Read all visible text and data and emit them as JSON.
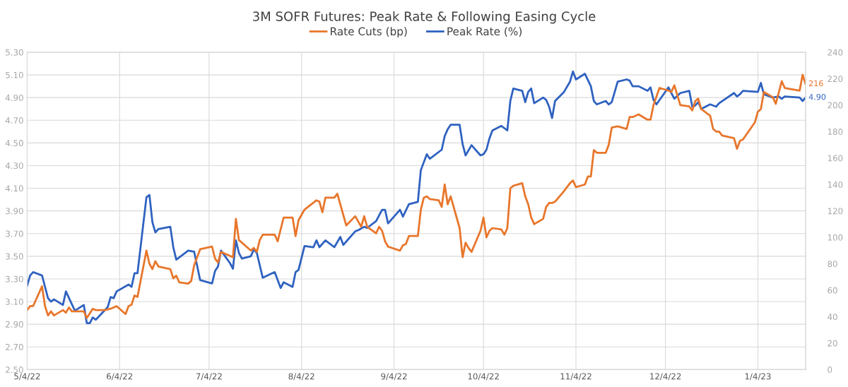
{
  "chart_data": {
    "type": "line",
    "title": "3M SOFR Futures: Peak Rate & Following Easing Cycle",
    "legend": "top",
    "grid": true,
    "line_style": "solid",
    "marker": "none",
    "xlim": [
      "2022-05-04",
      "2023-01-20"
    ],
    "xticks": [
      {
        "value": "2022-05-04",
        "label": "5/4/22"
      },
      {
        "value": "2022-06-04",
        "label": "6/4/22"
      },
      {
        "value": "2022-07-04",
        "label": "7/4/22"
      },
      {
        "value": "2022-08-04",
        "label": "8/4/22"
      },
      {
        "value": "2022-09-04",
        "label": "9/4/22"
      },
      {
        "value": "2022-10-04",
        "label": "10/4/22"
      },
      {
        "value": "2022-11-04",
        "label": "11/4/22"
      },
      {
        "value": "2022-12-04",
        "label": "12/4/22"
      },
      {
        "value": "2023-01-04",
        "label": "1/4/23"
      }
    ],
    "ylim": [
      2.5,
      5.3
    ],
    "yticks": [
      {
        "value": 2.5,
        "label": "2.50"
      },
      {
        "value": 2.7,
        "label": "2.70"
      },
      {
        "value": 2.9,
        "label": "2.90"
      },
      {
        "value": 3.1,
        "label": "3.10"
      },
      {
        "value": 3.3,
        "label": "3.30"
      },
      {
        "value": 3.5,
        "label": "3.50"
      },
      {
        "value": 3.7,
        "label": "3.70"
      },
      {
        "value": 3.9,
        "label": "3.90"
      },
      {
        "value": 4.1,
        "label": "4.10"
      },
      {
        "value": 4.3,
        "label": "4.30"
      },
      {
        "value": 4.5,
        "label": "4.50"
      },
      {
        "value": 4.7,
        "label": "4.70"
      },
      {
        "value": 4.9,
        "label": "4.90"
      },
      {
        "value": 5.1,
        "label": "5.10"
      },
      {
        "value": 5.3,
        "label": "5.30"
      }
    ],
    "y2lim": [
      0,
      240
    ],
    "y2ticks": [
      0,
      20,
      40,
      60,
      80,
      100,
      120,
      140,
      160,
      180,
      200,
      220,
      240
    ],
    "series": [
      {
        "name": "Rate Cuts (bp)",
        "color": "#e8762b",
        "axis": "y2",
        "x": [
          "2022-05-04",
          "2022-05-05",
          "2022-05-06",
          "2022-05-09",
          "2022-05-10",
          "2022-05-11",
          "2022-05-12",
          "2022-05-13",
          "2022-05-16",
          "2022-05-17",
          "2022-05-18",
          "2022-05-19",
          "2022-05-23",
          "2022-05-24",
          "2022-05-26",
          "2022-05-27",
          "2022-05-30",
          "2022-06-01",
          "2022-06-03",
          "2022-06-06",
          "2022-06-07",
          "2022-06-08",
          "2022-06-09",
          "2022-06-10",
          "2022-06-13",
          "2022-06-14",
          "2022-06-15",
          "2022-06-16",
          "2022-06-17",
          "2022-06-21",
          "2022-06-22",
          "2022-06-23",
          "2022-06-24",
          "2022-06-27",
          "2022-06-28",
          "2022-06-29",
          "2022-07-01",
          "2022-07-05",
          "2022-07-06",
          "2022-07-07",
          "2022-07-08",
          "2022-07-12",
          "2022-07-13",
          "2022-07-14",
          "2022-07-18",
          "2022-07-19",
          "2022-07-20",
          "2022-07-21",
          "2022-07-22",
          "2022-07-26",
          "2022-07-27",
          "2022-07-29",
          "2022-08-01",
          "2022-08-02",
          "2022-08-03",
          "2022-08-05",
          "2022-08-09",
          "2022-08-10",
          "2022-08-11",
          "2022-08-12",
          "2022-08-15",
          "2022-08-16",
          "2022-08-19",
          "2022-08-22",
          "2022-08-24",
          "2022-08-25",
          "2022-08-26",
          "2022-08-29",
          "2022-08-30",
          "2022-08-31",
          "2022-09-01",
          "2022-09-02",
          "2022-09-06",
          "2022-09-07",
          "2022-09-08",
          "2022-09-09",
          "2022-09-12",
          "2022-09-13",
          "2022-09-14",
          "2022-09-15",
          "2022-09-16",
          "2022-09-19",
          "2022-09-20",
          "2022-09-21",
          "2022-09-22",
          "2022-09-23",
          "2022-09-26",
          "2022-09-27",
          "2022-09-28",
          "2022-09-29",
          "2022-09-30",
          "2022-10-03",
          "2022-10-04",
          "2022-10-05",
          "2022-10-06",
          "2022-10-07",
          "2022-10-10",
          "2022-10-11",
          "2022-10-12",
          "2022-10-13",
          "2022-10-14",
          "2022-10-17",
          "2022-10-18",
          "2022-10-19",
          "2022-10-20",
          "2022-10-21",
          "2022-10-24",
          "2022-10-25",
          "2022-10-26",
          "2022-10-27",
          "2022-10-28",
          "2022-10-31",
          "2022-11-02",
          "2022-11-03",
          "2022-11-04",
          "2022-11-07",
          "2022-11-08",
          "2022-11-09",
          "2022-11-10",
          "2022-11-11",
          "2022-11-14",
          "2022-11-15",
          "2022-11-16",
          "2022-11-18",
          "2022-11-21",
          "2022-11-22",
          "2022-11-23",
          "2022-11-25",
          "2022-11-28",
          "2022-11-29",
          "2022-11-30",
          "2022-12-02",
          "2022-12-05",
          "2022-12-06",
          "2022-12-07",
          "2022-12-09",
          "2022-12-12",
          "2022-12-13",
          "2022-12-14",
          "2022-12-15",
          "2022-12-16",
          "2022-12-19",
          "2022-12-20",
          "2022-12-21",
          "2022-12-22",
          "2022-12-23",
          "2022-12-27",
          "2022-12-28",
          "2022-12-29",
          "2022-12-30",
          "2023-01-03",
          "2023-01-04",
          "2023-01-05",
          "2023-01-06",
          "2023-01-09",
          "2023-01-10",
          "2023-01-12",
          "2023-01-13",
          "2023-01-18",
          "2023-01-19",
          "2023-01-20"
        ],
        "values": [
          45,
          48,
          48,
          63,
          48,
          41,
          44,
          41,
          45,
          43,
          47,
          44,
          44,
          39,
          46,
          45,
          45,
          46,
          48,
          42,
          48,
          49,
          56,
          55,
          90,
          80,
          76,
          82,
          78,
          76,
          69,
          71,
          66,
          65,
          67,
          79,
          91,
          93,
          84,
          81,
          89,
          85,
          114,
          98,
          90,
          92,
          89,
          98,
          102,
          102,
          97,
          115,
          115,
          101,
          113,
          121,
          128,
          127,
          119,
          130,
          130,
          133,
          109,
          116,
          108,
          116,
          108,
          103,
          108,
          105,
          97,
          93,
          90,
          94,
          95,
          101,
          101,
          121,
          130,
          131,
          129,
          128,
          123,
          140,
          125,
          131,
          107,
          85,
          96,
          92,
          89,
          105,
          115,
          100,
          105,
          107,
          106,
          102,
          107,
          137,
          139,
          141,
          131,
          125,
          115,
          110,
          114,
          123,
          126,
          126,
          127,
          135,
          141,
          143,
          138,
          140,
          146,
          146,
          166,
          164,
          164,
          170,
          183,
          184,
          182,
          191,
          191,
          193,
          189,
          189,
          200,
          213,
          211,
          210,
          215,
          200,
          199,
          196,
          203,
          205,
          197,
          192,
          182,
          180,
          180,
          177,
          175,
          167,
          173,
          174,
          187,
          195,
          197,
          210,
          206,
          201,
          218,
          213,
          211,
          223,
          216
        ],
        "value_labels": [
          null,
          null,
          null,
          null,
          null,
          null,
          null,
          null,
          null,
          null,
          null,
          null,
          null,
          null,
          null,
          null,
          null,
          null,
          null,
          null,
          null,
          null,
          null,
          null,
          null,
          null,
          null,
          null,
          null,
          null,
          null,
          null,
          null,
          null,
          null,
          null,
          null,
          null,
          null,
          null,
          null,
          null,
          null,
          null,
          null,
          null,
          null,
          null,
          null,
          null,
          null,
          null,
          null,
          null,
          null,
          null,
          null,
          null,
          null,
          null,
          null,
          null,
          null,
          null,
          null,
          null,
          null,
          null,
          null,
          null,
          null,
          null,
          null,
          null,
          null,
          null,
          null,
          null,
          null,
          null,
          null,
          null,
          null,
          null,
          null,
          null,
          null,
          null,
          null,
          null,
          null,
          null,
          null,
          null,
          null,
          null,
          null,
          null,
          null,
          null,
          null,
          null,
          null,
          null,
          null,
          null,
          null,
          null,
          null,
          null,
          null,
          null,
          null,
          null,
          null,
          null,
          null,
          null,
          null,
          null,
          null,
          null,
          null,
          null,
          null,
          null,
          null,
          null,
          null,
          null,
          null,
          null,
          null,
          null,
          null,
          null,
          null,
          null,
          null,
          null,
          null,
          null,
          null,
          null,
          null,
          null,
          null,
          null,
          null,
          null,
          null,
          null,
          null,
          null,
          null,
          null,
          null,
          null,
          null,
          null,
          "216"
        ]
      },
      {
        "name": "Peak Rate (%)",
        "color": "#2f62c0",
        "x": [
          "2022-05-04",
          "2022-05-05",
          "2022-05-06",
          "2022-05-09",
          "2022-05-11",
          "2022-05-12",
          "2022-05-13",
          "2022-05-16",
          "2022-05-17",
          "2022-05-20",
          "2022-05-23",
          "2022-05-24",
          "2022-05-25",
          "2022-05-26",
          "2022-05-27",
          "2022-05-31",
          "2022-06-01",
          "2022-06-02",
          "2022-06-03",
          "2022-06-07",
          "2022-06-08",
          "2022-06-09",
          "2022-06-10",
          "2022-06-13",
          "2022-06-14",
          "2022-06-15",
          "2022-06-16",
          "2022-06-17",
          "2022-06-21",
          "2022-06-22",
          "2022-06-23",
          "2022-06-27",
          "2022-06-29",
          "2022-07-01",
          "2022-07-05",
          "2022-07-06",
          "2022-07-07",
          "2022-07-08",
          "2022-07-11",
          "2022-07-12",
          "2022-07-13",
          "2022-07-14",
          "2022-07-15",
          "2022-07-18",
          "2022-07-19",
          "2022-07-20",
          "2022-07-22",
          "2022-07-26",
          "2022-07-28",
          "2022-07-29",
          "2022-08-01",
          "2022-08-02",
          "2022-08-03",
          "2022-08-05",
          "2022-08-08",
          "2022-08-09",
          "2022-08-10",
          "2022-08-12",
          "2022-08-15",
          "2022-08-17",
          "2022-08-18",
          "2022-08-19",
          "2022-08-22",
          "2022-08-23",
          "2022-08-25",
          "2022-08-26",
          "2022-08-29",
          "2022-08-31",
          "2022-09-01",
          "2022-09-02",
          "2022-09-06",
          "2022-09-07",
          "2022-09-09",
          "2022-09-12",
          "2022-09-13",
          "2022-09-15",
          "2022-09-16",
          "2022-09-20",
          "2022-09-21",
          "2022-09-22",
          "2022-09-23",
          "2022-09-26",
          "2022-09-27",
          "2022-09-28",
          "2022-09-30",
          "2022-10-03",
          "2022-10-04",
          "2022-10-05",
          "2022-10-06",
          "2022-10-07",
          "2022-10-10",
          "2022-10-11",
          "2022-10-12",
          "2022-10-13",
          "2022-10-14",
          "2022-10-17",
          "2022-10-18",
          "2022-10-19",
          "2022-10-20",
          "2022-10-21",
          "2022-10-24",
          "2022-10-25",
          "2022-10-26",
          "2022-10-27",
          "2022-10-28",
          "2022-10-31",
          "2022-11-02",
          "2022-11-03",
          "2022-11-04",
          "2022-11-07",
          "2022-11-09",
          "2022-11-10",
          "2022-11-11",
          "2022-11-14",
          "2022-11-15",
          "2022-11-16",
          "2022-11-18",
          "2022-11-21",
          "2022-11-22",
          "2022-11-23",
          "2022-11-25",
          "2022-11-28",
          "2022-11-29",
          "2022-11-30",
          "2022-12-01",
          "2022-12-05",
          "2022-12-07",
          "2022-12-09",
          "2022-12-12",
          "2022-12-13",
          "2022-12-14",
          "2022-12-15",
          "2022-12-16",
          "2022-12-19",
          "2022-12-21",
          "2022-12-22",
          "2022-12-27",
          "2022-12-28",
          "2022-12-29",
          "2022-12-30",
          "2023-01-04",
          "2023-01-05",
          "2023-01-06",
          "2023-01-09",
          "2023-01-11",
          "2023-01-12",
          "2023-01-13",
          "2023-01-18",
          "2023-01-19",
          "2023-01-20"
        ],
        "values": [
          3.24,
          3.33,
          3.36,
          3.33,
          3.13,
          3.1,
          3.12,
          3.07,
          3.19,
          3.02,
          3.07,
          2.91,
          2.91,
          2.96,
          2.94,
          3.05,
          3.14,
          3.13,
          3.19,
          3.25,
          3.23,
          3.35,
          3.35,
          4.02,
          4.04,
          3.8,
          3.71,
          3.74,
          3.76,
          3.58,
          3.47,
          3.55,
          3.54,
          3.29,
          3.26,
          3.37,
          3.41,
          3.55,
          3.44,
          3.39,
          3.64,
          3.53,
          3.48,
          3.5,
          3.56,
          3.53,
          3.31,
          3.36,
          3.22,
          3.27,
          3.23,
          3.36,
          3.38,
          3.59,
          3.58,
          3.64,
          3.58,
          3.64,
          3.58,
          3.67,
          3.6,
          3.63,
          3.72,
          3.73,
          3.76,
          3.75,
          3.81,
          3.91,
          3.91,
          3.79,
          3.91,
          3.85,
          3.96,
          3.98,
          4.26,
          4.4,
          4.36,
          4.44,
          4.56,
          4.62,
          4.66,
          4.66,
          4.49,
          4.39,
          4.48,
          4.39,
          4.4,
          4.44,
          4.54,
          4.61,
          4.65,
          4.63,
          4.61,
          4.87,
          4.98,
          4.96,
          4.86,
          4.95,
          4.98,
          4.85,
          4.9,
          4.88,
          4.82,
          4.72,
          4.87,
          4.95,
          5.04,
          5.13,
          5.06,
          5.11,
          5.0,
          4.87,
          4.84,
          4.87,
          4.84,
          4.86,
          5.04,
          5.06,
          5.05,
          5.0,
          5.0,
          4.96,
          4.99,
          4.88,
          4.84,
          4.99,
          4.89,
          4.94,
          4.96,
          4.82,
          4.83,
          4.86,
          4.8,
          4.84,
          4.82,
          4.85,
          4.94,
          4.91,
          4.93,
          4.96,
          4.95,
          5.03,
          4.93,
          4.9,
          4.91,
          4.89,
          4.91,
          4.9,
          4.87,
          4.9
        ],
        "value_labels": [
          null,
          null,
          null,
          null,
          null,
          null,
          null,
          null,
          null,
          null,
          null,
          null,
          null,
          null,
          null,
          null,
          null,
          null,
          null,
          null,
          null,
          null,
          null,
          null,
          null,
          null,
          null,
          null,
          null,
          null,
          null,
          null,
          null,
          null,
          null,
          null,
          null,
          null,
          null,
          null,
          null,
          null,
          null,
          null,
          null,
          null,
          null,
          null,
          null,
          null,
          null,
          null,
          null,
          null,
          null,
          null,
          null,
          null,
          null,
          null,
          null,
          null,
          null,
          null,
          null,
          null,
          null,
          null,
          null,
          null,
          null,
          null,
          null,
          null,
          null,
          null,
          null,
          null,
          null,
          null,
          null,
          null,
          null,
          null,
          null,
          null,
          null,
          null,
          null,
          null,
          null,
          null,
          null,
          null,
          null,
          null,
          null,
          null,
          null,
          null,
          null,
          null,
          null,
          null,
          null,
          null,
          null,
          null,
          null,
          null,
          null,
          null,
          null,
          null,
          null,
          null,
          null,
          null,
          null,
          null,
          null,
          null,
          null,
          null,
          null,
          null,
          null,
          null,
          null,
          null,
          null,
          null,
          null,
          null,
          null,
          null,
          null,
          null,
          null,
          null,
          null,
          null,
          null,
          null,
          null,
          null,
          null,
          null,
          null,
          "4.90"
        ]
      }
    ]
  }
}
